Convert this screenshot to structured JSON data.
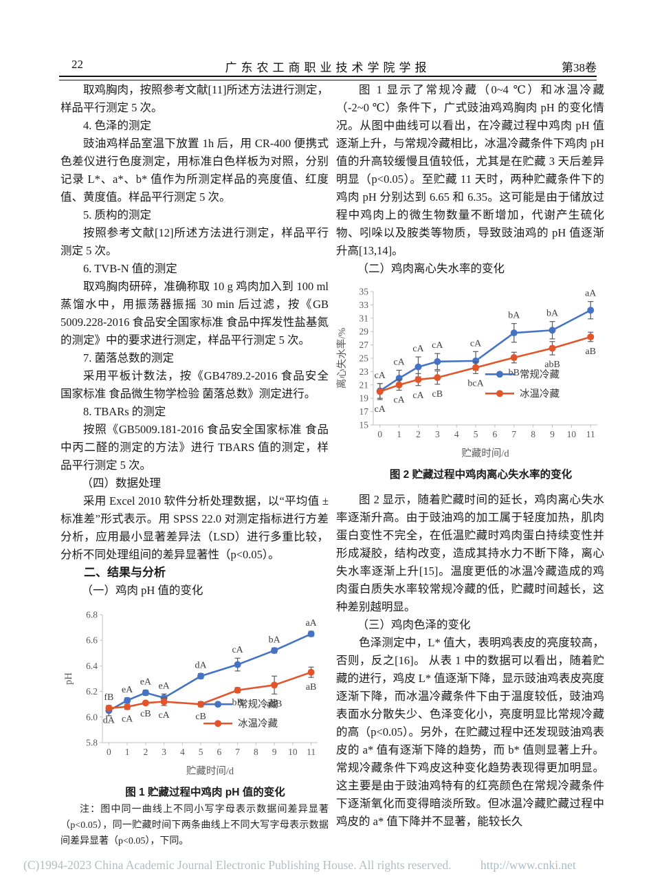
{
  "header": {
    "page_number": "22",
    "journal_title": "广东农工商职业技术学院学报",
    "volume": "第38卷"
  },
  "left_column": {
    "blocks": [
      "取鸡胸肉，按照参考文献[11]所述方法进行测定，样品平行测定 5 次。",
      "4. 色泽的测定",
      "豉油鸡样品室温下放置 1h 后，用 CR-400 便携式色差仪进行色度测定，用标准白色样板为对照，分别记录 L*、a*、b* 值作为所测定样品的亮度值、红度值、黄度值。样品平行测定 5 次。",
      "5. 质构的测定",
      "按照参考文献[12]所述方法进行测定，样品平行测定 5 次。",
      "6. TVB-N 值的测定",
      "取鸡胸肉研碎，准确称取 10 g 鸡肉加入到 100 ml 蒸馏水中，用振荡器振摇 30 min 后过滤，按《GB 5009.228-2016 食品安全国家标准 食品中挥发性盐基氮的测定》中的要求进行测定，样品平行测定 5 次。",
      "7. 菌落总数的测定",
      "采用平板计数法，按《GB4789.2-2016 食品安全国家标准 食品微生物学检验 菌落总数》测定进行。",
      "8. TBARs 的测定",
      "按照《GB5009.181-2016 食品安全国家标准 食品中丙二醛的测定的方法》进行 TBARS 值的测定，样品平行测定 5 次。",
      "（四）数据处理",
      "采用 Excel 2010 软件分析处理数据，以“平均值 ± 标准差”形式表示。用 SPSS 22.0 对测定指标进行方差分析，应用最小显著差异法（LSD）进行多重比较，分析不同处理组间的差异显著性（p<0.05）。",
      "二、结果与分析",
      "（一）鸡肉 pH 值的变化"
    ]
  },
  "right_column": {
    "blocks": [
      "图 1 显示了常规冷藏（0~4 ℃）和冰温冷藏（-2~0 ℃）条件下，广式豉油鸡鸡胸肉 pH 的变化情况。从图中曲线可以看出，在冷藏过程中鸡肉 pH 值逐渐上升，与常规冷藏相比，冰温冷藏条件下鸡肉 pH 值的升高较缓慢且值较低，尤其是在贮藏 3 天后差异明显（p<0.05）。至贮藏 11 天时，两种贮藏条件下的鸡肉 pH 分别达到 6.65 和 6.35。这可能是由于储放过程中鸡肉上的微生物数量不断增加，代谢产生硫化物、吲哚以及胺类等物质，导致豉油鸡的 pH 值逐渐升高[13,14]。",
      "（二）鸡肉离心失水率的变化",
      "图 2 显示，随着贮藏时间的延长，鸡肉离心失水率逐渐升高。由于豉油鸡的加工属于轻度加热，肌肉蛋白变性不完全，在低温贮藏时鸡肉蛋白持续变性并形成凝胶，结构改变，造成其持水力不断下降，离心失水率逐渐上升[15]。温度更低的冰温冷藏造成的鸡肉蛋白质失水率较常规冷藏的低，贮藏时间越长，这种差别越明显。",
      "（三）鸡肉色泽的变化",
      "色泽测定中，L* 值大，表明鸡表皮的亮度较高，否则，反之[16]。 从表 1 中的数据可以看出，随着贮藏的进行，鸡皮 L* 值逐渐下降，显示豉油鸡表皮亮度逐渐下降，而冰温冷藏条件下由于温度较低，豉油鸡表面水分散失少、色泽变化小，亮度明显比常规冷藏的高（p<0.05）。另外，在贮藏过程中还发现豉油鸡表皮的 a* 值有逐渐下降的趋势，而 b* 值则显著上升。常规冷藏条件下鸡皮这种变化趋势表现得更加明显。这主要是由于豉油鸡特有的红亮颜色在常规冷藏条件下逐渐氧化而变得暗淡所致。但冰温冷藏贮藏过程中鸡皮的 a* 值下降并不显著，能较长久"
    ]
  },
  "figure1": {
    "caption": "图 1  贮藏过程中鸡肉 pH 值的变化",
    "note": "注：图中同一曲线上不同小写字母表示数据间差异显著（p<0.05），同一贮藏时间下两条曲线上不同大写字母表示数据间差异显著（p<0.05），下同。"
  },
  "figure2": {
    "caption": "图 2  贮藏过程中鸡肉离心失水率的变化"
  },
  "footer": {
    "copyright": "(C)1994-2023 China Academic Journal Electronic Publishing House. All rights reserved.",
    "url": "http://www.cnki.net"
  },
  "colors": {
    "series_blue": "#4472C4",
    "series_orange": "#E2542A",
    "axis_line": "#BFBFBF",
    "tick_text": "#595959",
    "error_bar": "#595959",
    "data_label": "#3d3d3d"
  },
  "chart_data": [
    {
      "type": "line",
      "title": "图 1 贮藏过程中鸡肉 pH 值的变化",
      "xlabel": "贮藏时间/d",
      "ylabel": "pH",
      "x": [
        0,
        1,
        2,
        3,
        5,
        7,
        9,
        11
      ],
      "xticks": [
        0,
        1,
        2,
        3,
        4,
        5,
        6,
        7,
        8,
        9,
        10,
        11
      ],
      "ylim": [
        5.8,
        6.8
      ],
      "ytick_step": 0.2,
      "ytick_decimals": 1,
      "grid": false,
      "legend_position": "inside lower right",
      "series": [
        {
          "name": "常规冷藏",
          "color": "#4472C4",
          "label_side": "above",
          "values": [
            6.05,
            6.13,
            6.19,
            6.15,
            6.32,
            6.41,
            6.52,
            6.65
          ],
          "errors": [
            0.04,
            0.02,
            0.02,
            0.03,
            0.02,
            0.05,
            0.02,
            0.02
          ],
          "point_labels": [
            "fB",
            "eA",
            "eA",
            "eA",
            "dA",
            "cA",
            "bA",
            "aA"
          ]
        },
        {
          "name": "冰温冷藏",
          "color": "#E2542A",
          "label_side": "below",
          "values": [
            6.07,
            6.08,
            6.11,
            6.12,
            6.1,
            6.21,
            6.25,
            6.35
          ],
          "errors": [
            0.02,
            0.02,
            0.01,
            0.03,
            0.02,
            0.02,
            0.07,
            0.04
          ],
          "point_labels": [
            "dA",
            "cA",
            "cB",
            "cA",
            "cB",
            "bB",
            "abB",
            "aB"
          ]
        }
      ]
    },
    {
      "type": "line",
      "title": "图 2 贮藏过程中鸡肉离心失水率的变化",
      "xlabel": "贮藏时间/d",
      "ylabel": "离心失水率/%",
      "x": [
        0,
        1,
        2,
        3,
        5,
        7,
        9,
        11
      ],
      "xticks": [
        0,
        1,
        2,
        3,
        4,
        5,
        6,
        7,
        8,
        9,
        10,
        11
      ],
      "ylim": [
        15,
        35
      ],
      "ytick_step": 2,
      "ytick_decimals": 0,
      "grid": false,
      "legend_position": "inside lower right",
      "series": [
        {
          "name": "常规冷藏",
          "color": "#4472C4",
          "label_side": "above",
          "values": [
            20.1,
            22.0,
            23.7,
            24.5,
            24.6,
            28.8,
            29.2,
            32.2
          ],
          "errors": [
            1.1,
            1.2,
            1.5,
            1.2,
            1.4,
            1.4,
            1.3,
            1.3
          ],
          "point_labels": [
            "cA",
            "cA",
            "cA",
            "cA",
            "cA",
            "bA",
            "bA",
            "aA"
          ]
        },
        {
          "name": "冰温冷藏",
          "color": "#E2542A",
          "label_side": "below",
          "values": [
            20.0,
            21.0,
            21.8,
            22.1,
            23.6,
            25.1,
            26.5,
            28.2
          ],
          "errors": [
            1.2,
            0.8,
            0.9,
            1.0,
            0.9,
            0.8,
            1.0,
            0.7
          ],
          "point_labels": [
            "cA",
            "cA",
            "cA",
            "cB",
            "bcA",
            "bB",
            "abB",
            "aB"
          ]
        }
      ]
    }
  ]
}
